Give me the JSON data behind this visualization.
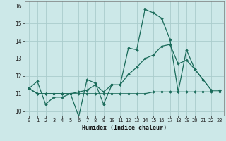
{
  "xlabel": "Humidex (Indice chaleur)",
  "background_color": "#cce8e8",
  "grid_color": "#aacccc",
  "line_color": "#1a6b5a",
  "xlim": [
    -0.5,
    23.5
  ],
  "ylim": [
    9.75,
    16.25
  ],
  "xtick_labels": [
    "0",
    "1",
    "2",
    "3",
    "4",
    "5",
    "6",
    "7",
    "8",
    "9",
    "10",
    "11",
    "12",
    "13",
    "14",
    "15",
    "16",
    "17",
    "18",
    "19",
    "20",
    "21",
    "22",
    "23"
  ],
  "ytick_labels": [
    "10",
    "11",
    "12",
    "13",
    "14",
    "15",
    "16"
  ],
  "series": [
    [
      11.3,
      11.7,
      10.4,
      10.8,
      10.8,
      11.0,
      9.7,
      11.8,
      11.6,
      10.4,
      11.5,
      11.5,
      13.6,
      13.5,
      15.8,
      15.6,
      15.3,
      14.1,
      11.1,
      13.5,
      12.4,
      11.8,
      11.2,
      11.2
    ],
    [
      11.3,
      11.0,
      11.0,
      11.0,
      11.0,
      11.0,
      11.0,
      11.0,
      11.0,
      11.0,
      11.0,
      11.0,
      11.0,
      11.0,
      11.0,
      11.1,
      11.1,
      11.1,
      11.1,
      11.1,
      11.1,
      11.1,
      11.1,
      11.1
    ],
    [
      11.3,
      11.0,
      11.0,
      11.0,
      11.0,
      11.0,
      11.1,
      11.2,
      11.5,
      11.1,
      11.5,
      11.5,
      12.1,
      12.5,
      13.0,
      13.2,
      13.7,
      13.8,
      12.7,
      12.9,
      12.4,
      11.8,
      11.2,
      11.2
    ]
  ]
}
